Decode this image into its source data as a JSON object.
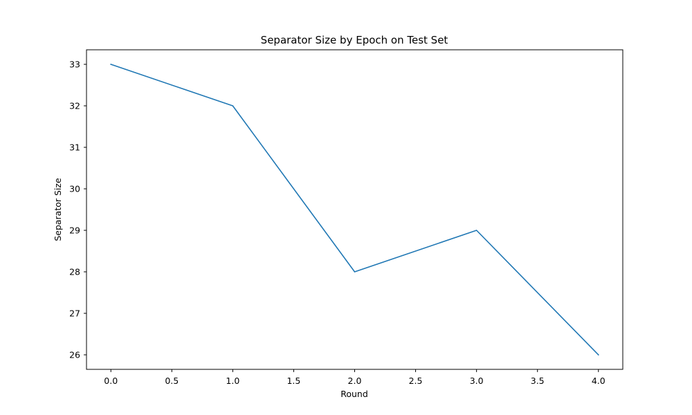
{
  "chart_data": {
    "type": "line",
    "title": "Separator Size by Epoch on Test Set",
    "xlabel": "Round",
    "ylabel": "Separator Size",
    "x": [
      0,
      1,
      2,
      3,
      4
    ],
    "series": [
      {
        "values": [
          33,
          32,
          28,
          29,
          26
        ],
        "color": "#1f77b4"
      }
    ],
    "xlim": [
      -0.2,
      4.2
    ],
    "ylim": [
      25.65,
      33.35
    ],
    "xticks": [
      0.0,
      0.5,
      1.0,
      1.5,
      2.0,
      2.5,
      3.0,
      3.5,
      4.0
    ],
    "xtick_labels": [
      "0.0",
      "0.5",
      "1.0",
      "1.5",
      "2.0",
      "2.5",
      "3.0",
      "3.5",
      "4.0"
    ],
    "yticks": [
      26,
      27,
      28,
      29,
      30,
      31,
      32,
      33
    ],
    "ytick_labels": [
      "26",
      "27",
      "28",
      "29",
      "30",
      "31",
      "32",
      "33"
    ],
    "grid": false,
    "legend": "none"
  }
}
